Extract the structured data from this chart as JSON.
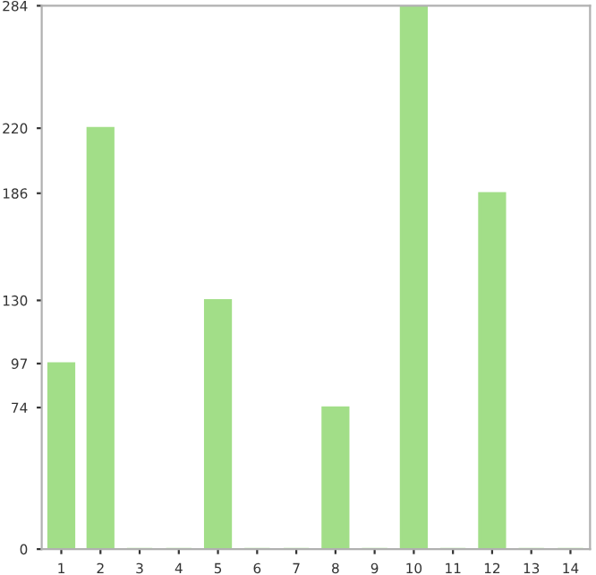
{
  "chart_data": {
    "type": "bar",
    "categories": [
      "1",
      "2",
      "3",
      "4",
      "5",
      "6",
      "7",
      "8",
      "9",
      "10",
      "11",
      "12",
      "13",
      "14"
    ],
    "values": [
      97,
      220,
      0,
      0,
      130,
      0,
      0,
      74,
      0,
      284,
      0,
      186,
      0,
      0
    ],
    "color": "#a2de88",
    "ylim": [
      0,
      284
    ],
    "yticks": [
      0,
      74,
      97,
      130,
      186,
      220,
      284
    ],
    "grid": false
  }
}
